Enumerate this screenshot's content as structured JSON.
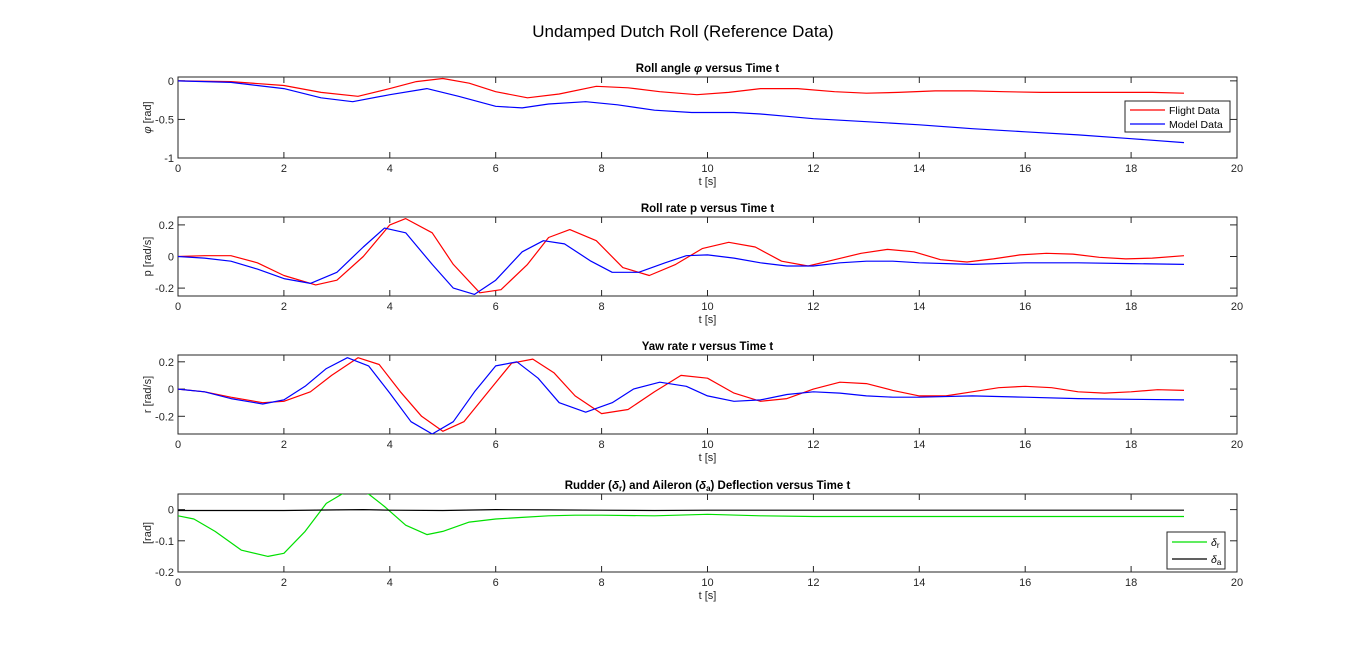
{
  "figure_title": "Undamped Dutch Roll (Reference Data)",
  "colors": {
    "flight": "#ff0000",
    "model": "#0000ff",
    "rudder": "#00e000",
    "aileron": "#000000"
  },
  "chart_data": [
    {
      "type": "line",
      "title_parts": [
        "Roll angle ",
        "φ",
        " versus Time t"
      ],
      "xlabel": "t [s]",
      "ylabel_parts": [
        "φ",
        " [rad]"
      ],
      "xlim": [
        0,
        20
      ],
      "ylim": [
        -1,
        0.05
      ],
      "xticks": [
        0,
        2,
        4,
        6,
        8,
        10,
        12,
        14,
        16,
        18,
        20
      ],
      "yticks": [
        0,
        -0.5,
        -1
      ],
      "ytick_labels": [
        "0",
        "-0.5",
        "-1"
      ],
      "legend": {
        "location": "east",
        "entries": [
          "Flight Data",
          "Model Data"
        ]
      },
      "series": [
        {
          "name": "Flight Data",
          "color_key": "flight",
          "x": [
            0,
            1,
            2,
            2.7,
            3.4,
            4.0,
            4.5,
            5.0,
            5.5,
            6.0,
            6.6,
            7.2,
            7.9,
            8.5,
            9.1,
            9.8,
            10.4,
            11.0,
            11.7,
            12.4,
            13.0,
            13.6,
            14.3,
            15.0,
            15.6,
            16.3,
            17.0,
            17.7,
            18.4,
            19.0
          ],
          "y": [
            0,
            -0.01,
            -0.06,
            -0.15,
            -0.2,
            -0.1,
            -0.01,
            0.03,
            -0.03,
            -0.14,
            -0.22,
            -0.17,
            -0.07,
            -0.09,
            -0.14,
            -0.18,
            -0.15,
            -0.1,
            -0.1,
            -0.14,
            -0.16,
            -0.15,
            -0.13,
            -0.13,
            -0.14,
            -0.15,
            -0.15,
            -0.15,
            -0.15,
            -0.16
          ]
        },
        {
          "name": "Model Data",
          "color_key": "model",
          "x": [
            0,
            1,
            2,
            2.7,
            3.3,
            4.0,
            4.7,
            5.3,
            6.0,
            6.5,
            7.0,
            7.7,
            8.3,
            9.0,
            9.7,
            10.5,
            11.0,
            11.5,
            12.0,
            13.0,
            14.0,
            15.0,
            16.0,
            17.0,
            18.0,
            19.0
          ],
          "y": [
            0,
            -0.02,
            -0.1,
            -0.22,
            -0.27,
            -0.18,
            -0.1,
            -0.2,
            -0.33,
            -0.35,
            -0.3,
            -0.27,
            -0.31,
            -0.38,
            -0.41,
            -0.41,
            -0.43,
            -0.46,
            -0.49,
            -0.53,
            -0.57,
            -0.62,
            -0.66,
            -0.7,
            -0.75,
            -0.8
          ]
        }
      ]
    },
    {
      "type": "line",
      "title_parts": [
        "Roll rate p versus Time t"
      ],
      "xlabel": "t [s]",
      "ylabel_parts": [
        "p [rad/s]"
      ],
      "xlim": [
        0,
        20
      ],
      "ylim": [
        -0.25,
        0.25
      ],
      "xticks": [
        0,
        2,
        4,
        6,
        8,
        10,
        12,
        14,
        16,
        18,
        20
      ],
      "yticks": [
        0.2,
        0,
        -0.2
      ],
      "ytick_labels": [
        "0.2",
        "0",
        "-0.2"
      ],
      "series": [
        {
          "name": "Flight Data",
          "color_key": "flight",
          "x": [
            0,
            0.5,
            1.0,
            1.5,
            2.0,
            2.6,
            3.0,
            3.5,
            4.0,
            4.3,
            4.8,
            5.2,
            5.7,
            6.1,
            6.6,
            7.0,
            7.4,
            7.9,
            8.4,
            8.9,
            9.4,
            9.9,
            10.4,
            10.9,
            11.4,
            11.9,
            12.4,
            12.9,
            13.4,
            13.9,
            14.4,
            14.9,
            15.4,
            15.9,
            16.4,
            16.9,
            17.4,
            17.9,
            18.4,
            19.0
          ],
          "y": [
            0,
            0.005,
            0.005,
            -0.04,
            -0.12,
            -0.18,
            -0.15,
            0.0,
            0.2,
            0.24,
            0.15,
            -0.05,
            -0.23,
            -0.21,
            -0.05,
            0.12,
            0.17,
            0.1,
            -0.07,
            -0.12,
            -0.05,
            0.05,
            0.09,
            0.06,
            -0.03,
            -0.06,
            -0.02,
            0.02,
            0.045,
            0.03,
            -0.02,
            -0.035,
            -0.015,
            0.01,
            0.02,
            0.015,
            -0.005,
            -0.015,
            -0.01,
            0.005
          ]
        },
        {
          "name": "Model Data",
          "color_key": "model",
          "x": [
            0,
            0.5,
            1.0,
            1.5,
            2.0,
            2.5,
            3.0,
            3.5,
            3.9,
            4.3,
            4.8,
            5.2,
            5.6,
            6.0,
            6.5,
            6.9,
            7.3,
            7.8,
            8.2,
            8.7,
            9.2,
            9.6,
            10.0,
            10.5,
            11.0,
            11.5,
            12.0,
            12.5,
            13.0,
            13.5,
            14.0,
            15.0,
            16.0,
            17.0,
            18.0,
            19.0
          ],
          "y": [
            0,
            -0.01,
            -0.03,
            -0.08,
            -0.14,
            -0.17,
            -0.1,
            0.06,
            0.18,
            0.15,
            -0.05,
            -0.2,
            -0.24,
            -0.15,
            0.03,
            0.1,
            0.08,
            -0.03,
            -0.1,
            -0.1,
            -0.04,
            0.005,
            0.01,
            -0.01,
            -0.04,
            -0.06,
            -0.06,
            -0.04,
            -0.03,
            -0.03,
            -0.04,
            -0.05,
            -0.04,
            -0.04,
            -0.045,
            -0.05
          ]
        }
      ]
    },
    {
      "type": "line",
      "title_parts": [
        "Yaw rate r versus Time t"
      ],
      "xlabel": "t [s]",
      "ylabel_parts": [
        "r [rad/s]"
      ],
      "xlim": [
        0,
        20
      ],
      "ylim": [
        -0.33,
        0.25
      ],
      "xticks": [
        0,
        2,
        4,
        6,
        8,
        10,
        12,
        14,
        16,
        18,
        20
      ],
      "yticks": [
        0.2,
        0,
        -0.2
      ],
      "ytick_labels": [
        "0.2",
        "0",
        "-0.2"
      ],
      "series": [
        {
          "name": "Flight Data",
          "color_key": "flight",
          "x": [
            0,
            0.5,
            1.0,
            1.6,
            2.0,
            2.5,
            2.9,
            3.4,
            3.8,
            4.2,
            4.6,
            5.0,
            5.4,
            5.9,
            6.3,
            6.7,
            7.1,
            7.5,
            8.0,
            8.5,
            9.0,
            9.5,
            10.0,
            10.5,
            11.0,
            11.5,
            12.0,
            12.5,
            13.0,
            13.5,
            14.0,
            14.5,
            15.0,
            15.5,
            16.0,
            16.5,
            17.0,
            17.5,
            18.0,
            18.5,
            19.0
          ],
          "y": [
            0,
            -0.02,
            -0.06,
            -0.1,
            -0.09,
            -0.02,
            0.1,
            0.23,
            0.18,
            -0.02,
            -0.2,
            -0.31,
            -0.24,
            0.0,
            0.19,
            0.22,
            0.12,
            -0.05,
            -0.18,
            -0.15,
            -0.02,
            0.1,
            0.08,
            -0.03,
            -0.09,
            -0.07,
            0.0,
            0.05,
            0.04,
            -0.01,
            -0.05,
            -0.05,
            -0.02,
            0.01,
            0.02,
            0.01,
            -0.02,
            -0.03,
            -0.02,
            -0.005,
            -0.01
          ]
        },
        {
          "name": "Model Data",
          "color_key": "model",
          "x": [
            0,
            0.5,
            1.0,
            1.6,
            2.0,
            2.4,
            2.8,
            3.2,
            3.6,
            4.0,
            4.4,
            4.8,
            5.2,
            5.6,
            6.0,
            6.4,
            6.8,
            7.2,
            7.7,
            8.2,
            8.6,
            9.1,
            9.6,
            10.0,
            10.5,
            11.0,
            11.5,
            12.0,
            12.5,
            13.0,
            13.5,
            14.0,
            15.0,
            16.0,
            17.0,
            18.0,
            19.0
          ],
          "y": [
            0,
            -0.02,
            -0.07,
            -0.11,
            -0.08,
            0.02,
            0.15,
            0.23,
            0.17,
            -0.03,
            -0.24,
            -0.33,
            -0.24,
            -0.02,
            0.17,
            0.2,
            0.08,
            -0.1,
            -0.17,
            -0.1,
            0.0,
            0.05,
            0.02,
            -0.05,
            -0.09,
            -0.08,
            -0.04,
            -0.02,
            -0.03,
            -0.05,
            -0.06,
            -0.06,
            -0.05,
            -0.06,
            -0.07,
            -0.075,
            -0.08
          ]
        }
      ]
    },
    {
      "type": "line",
      "title_parts": [
        "Rudder (",
        "δ",
        "r",
        ") and Aileron (",
        "δ",
        "a",
        ") Deflection versus Time t"
      ],
      "xlabel": "t [s]",
      "ylabel_parts": [
        "[rad]"
      ],
      "xlim": [
        0,
        20
      ],
      "ylim": [
        -0.2,
        0.05
      ],
      "xticks": [
        0,
        2,
        4,
        6,
        8,
        10,
        12,
        14,
        16,
        18,
        20
      ],
      "yticks": [
        0,
        -0.1,
        -0.2
      ],
      "ytick_labels": [
        "0",
        "-0.1",
        "-0.2"
      ],
      "legend": {
        "location": "southeast",
        "entries": [
          [
            "δ",
            "r"
          ],
          [
            "δ",
            "a"
          ]
        ]
      },
      "series": [
        {
          "name": "δr",
          "color_key": "rudder",
          "x": [
            0,
            0.3,
            0.7,
            1.2,
            1.7,
            2.0,
            2.4,
            2.8,
            3.1,
            3.3,
            3.6,
            3.9,
            4.3,
            4.7,
            5.0,
            5.5,
            6.0,
            6.5,
            7.0,
            7.5,
            8.0,
            9.0,
            10.0,
            11.0,
            12.0,
            13.0,
            14.0,
            15.0,
            16.0,
            17.0,
            18.0,
            19.0
          ],
          "y": [
            -0.02,
            -0.03,
            -0.07,
            -0.13,
            -0.15,
            -0.14,
            -0.07,
            0.02,
            0.05,
            0.065,
            0.05,
            0.01,
            -0.05,
            -0.08,
            -0.07,
            -0.04,
            -0.03,
            -0.025,
            -0.02,
            -0.018,
            -0.018,
            -0.02,
            -0.015,
            -0.02,
            -0.022,
            -0.022,
            -0.022,
            -0.022,
            -0.022,
            -0.022,
            -0.022,
            -0.022
          ]
        },
        {
          "name": "δa",
          "color_key": "aileron",
          "x": [
            0,
            1,
            2,
            3,
            3.5,
            4,
            5,
            6,
            7,
            8,
            9,
            10,
            11,
            12,
            13,
            14,
            15,
            16,
            17,
            18,
            19
          ],
          "y": [
            -0.003,
            -0.003,
            -0.003,
            -0.001,
            0.0,
            -0.002,
            -0.003,
            0.0,
            -0.001,
            -0.002,
            -0.003,
            -0.002,
            -0.002,
            -0.002,
            -0.002,
            -0.002,
            -0.002,
            -0.002,
            -0.002,
            -0.002,
            -0.002
          ]
        }
      ]
    }
  ]
}
